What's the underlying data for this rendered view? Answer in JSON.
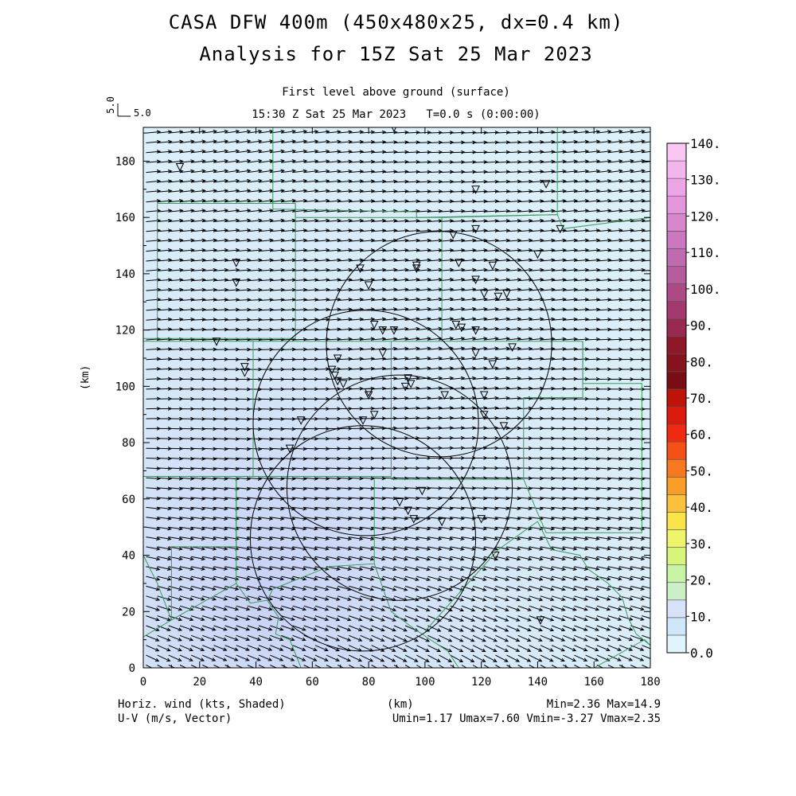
{
  "header": {
    "title_line1": "CASA DFW 400m (450x480x25, dx=0.4 km)",
    "title_line2": "Analysis for 15Z Sat 25 Mar 2023",
    "subtitle_line1": "First level above ground (surface)",
    "subtitle_line2": "15:30 Z Sat 25 Mar 2023   T=0.0 s (0:00:00)"
  },
  "reference_vector": {
    "vertical_label": "5.0",
    "horizontal_label": "5.0"
  },
  "footer": {
    "left_line1": "Horiz. wind (kts, Shaded)",
    "left_line2": "U-V (m/s, Vector)",
    "center": "(km)",
    "right_line1": "Min=2.36 Max=14.9",
    "right_line2": "Umin=1.17 Umax=7.60 Vmin=-3.27 Vmax=2.35"
  },
  "chart_data": {
    "type": "heatmap",
    "title": "CASA DFW 400m (450x480x25, dx=0.4 km)",
    "subtitle": "Analysis for 15Z Sat 25 Mar 2023",
    "xlabel": "(km)",
    "ylabel": "(km)",
    "xlim": [
      0,
      180
    ],
    "ylim": [
      0,
      192
    ],
    "x_ticks": [
      "0",
      "20",
      "40",
      "60",
      "80",
      "100",
      "120",
      "140",
      "160",
      "180"
    ],
    "y_ticks": [
      "0",
      "20",
      "40",
      "60",
      "80",
      "100",
      "120",
      "140",
      "160",
      "180"
    ],
    "colorbar": {
      "label": "Horiz. wind (kts, Shaded)",
      "levels": [
        "0.0",
        "10.",
        "20.",
        "30.",
        "40.",
        "50.",
        "60.",
        "70.",
        "80.",
        "90.",
        "100.",
        "110.",
        "120.",
        "130.",
        "140."
      ],
      "colors": [
        "#dff4fb",
        "#cfe6fb",
        "#d8e2fa",
        "#cbf0c8",
        "#c6f3a6",
        "#d7f57a",
        "#eef56a",
        "#fbe34a",
        "#fcc13a",
        "#fa9e2a",
        "#f7781f",
        "#f55016",
        "#ef2a10",
        "#d91a0c",
        "#bf1208",
        "#7a0d14",
        "#86121e",
        "#8e1828",
        "#982a52",
        "#a23a6e",
        "#ac4a86",
        "#b55c9c",
        "#c06ab0",
        "#cc78c0",
        "#d886cc",
        "#e496dc",
        "#eca6e6",
        "#f4b6ee",
        "#fac6f4"
      ]
    },
    "wind_field": {
      "min_kts": 2.36,
      "max_kts": 14.9,
      "u_min": 1.17,
      "u_max": 7.6,
      "v_min": -3.27,
      "v_max": 2.35
    },
    "radar_coverage_circles": [
      {
        "cx": 78,
        "cy": 46,
        "r": 40
      },
      {
        "cx": 91,
        "cy": 64,
        "r": 40
      },
      {
        "cx": 79,
        "cy": 87,
        "r": 40
      },
      {
        "cx": 105,
        "cy": 115,
        "r": 40
      }
    ],
    "stations": [
      [
        13,
        178
      ],
      [
        89,
        192
      ],
      [
        118,
        170
      ],
      [
        143,
        172
      ],
      [
        118,
        156
      ],
      [
        148,
        156
      ],
      [
        110,
        154
      ],
      [
        140,
        147
      ],
      [
        33,
        144
      ],
      [
        33,
        137
      ],
      [
        77,
        142
      ],
      [
        80,
        136
      ],
      [
        97,
        143
      ],
      [
        97,
        142
      ],
      [
        112,
        144
      ],
      [
        124,
        143
      ],
      [
        118,
        138
      ],
      [
        121,
        133
      ],
      [
        129,
        133
      ],
      [
        126,
        132
      ],
      [
        26,
        116
      ],
      [
        36,
        107
      ],
      [
        36,
        105
      ],
      [
        82,
        122
      ],
      [
        85,
        120
      ],
      [
        89,
        120
      ],
      [
        111,
        122
      ],
      [
        113,
        121
      ],
      [
        118,
        120
      ],
      [
        131,
        114
      ],
      [
        118,
        112
      ],
      [
        85,
        112
      ],
      [
        69,
        110
      ],
      [
        67,
        106
      ],
      [
        69,
        102
      ],
      [
        68,
        104
      ],
      [
        71,
        101
      ],
      [
        94,
        103
      ],
      [
        93,
        100
      ],
      [
        95,
        101
      ],
      [
        80,
        98
      ],
      [
        80,
        97
      ],
      [
        107,
        97
      ],
      [
        121,
        97
      ],
      [
        124,
        108
      ],
      [
        78,
        88
      ],
      [
        82,
        90
      ],
      [
        121,
        90
      ],
      [
        128,
        86
      ],
      [
        56,
        88
      ],
      [
        52,
        78
      ],
      [
        99,
        63
      ],
      [
        91,
        59
      ],
      [
        94,
        56
      ],
      [
        96,
        53
      ],
      [
        106,
        52
      ],
      [
        120,
        53
      ],
      [
        125,
        40
      ],
      [
        141,
        17
      ]
    ],
    "boundary_lines": [
      [
        [
          46,
          192
        ],
        [
          46,
          163
        ],
        [
          97,
          162
        ],
        [
          97,
          160
        ]
      ],
      [
        [
          147,
          192
        ],
        [
          147,
          161
        ],
        [
          97,
          160
        ]
      ],
      [
        [
          5,
          165
        ],
        [
          54,
          165
        ],
        [
          54,
          117
        ],
        [
          5,
          117
        ],
        [
          0,
          117
        ]
      ],
      [
        [
          5,
          165
        ],
        [
          5,
          117
        ]
      ],
      [
        [
          54,
          165
        ],
        [
          54,
          160
        ],
        [
          106,
          160
        ],
        [
          106,
          116
        ]
      ],
      [
        [
          106,
          160
        ],
        [
          147,
          161
        ],
        [
          149,
          156
        ],
        [
          180,
          160
        ]
      ],
      [
        [
          0,
          116
        ],
        [
          39,
          116
        ],
        [
          39,
          68
        ],
        [
          0,
          68
        ]
      ],
      [
        [
          39,
          116
        ],
        [
          88,
          116
        ],
        [
          88,
          68
        ],
        [
          39,
          68
        ]
      ],
      [
        [
          88,
          116
        ],
        [
          156,
          116
        ],
        [
          156,
          96
        ],
        [
          135,
          96
        ],
        [
          135,
          67
        ],
        [
          88,
          67
        ]
      ],
      [
        [
          156,
          116
        ],
        [
          156,
          101
        ],
        [
          177,
          101
        ],
        [
          177,
          48
        ],
        [
          143,
          48
        ],
        [
          140,
          55
        ],
        [
          135,
          67
        ]
      ],
      [
        [
          33,
          68
        ],
        [
          33,
          43
        ],
        [
          10,
          43
        ],
        [
          10,
          17
        ]
      ],
      [
        [
          0,
          40
        ],
        [
          5,
          30
        ],
        [
          10,
          17
        ],
        [
          0,
          11
        ]
      ],
      [
        [
          33,
          68
        ],
        [
          33,
          30
        ],
        [
          10,
          17
        ]
      ],
      [
        [
          33,
          30
        ],
        [
          38,
          23
        ],
        [
          44,
          24
        ],
        [
          46,
          28
        ],
        [
          66,
          36
        ],
        [
          82,
          37
        ],
        [
          82,
          67
        ]
      ],
      [
        [
          44,
          24
        ],
        [
          48,
          18
        ],
        [
          47,
          12
        ],
        [
          52,
          10
        ],
        [
          54,
          5
        ],
        [
          56,
          0
        ]
      ],
      [
        [
          82,
          37
        ],
        [
          88,
          20
        ],
        [
          96,
          14
        ],
        [
          108,
          6
        ],
        [
          112,
          0
        ]
      ],
      [
        [
          100,
          13
        ],
        [
          126,
          42
        ],
        [
          126,
          42
        ]
      ],
      [
        [
          126,
          42
        ],
        [
          140,
          52
        ],
        [
          145,
          42
        ],
        [
          155,
          40
        ],
        [
          158,
          35
        ],
        [
          165,
          30
        ],
        [
          170,
          25
        ],
        [
          172,
          18
        ],
        [
          175,
          12
        ],
        [
          180,
          8
        ]
      ],
      [
        [
          160,
          0
        ],
        [
          178,
          10
        ],
        [
          180,
          8
        ]
      ]
    ]
  }
}
